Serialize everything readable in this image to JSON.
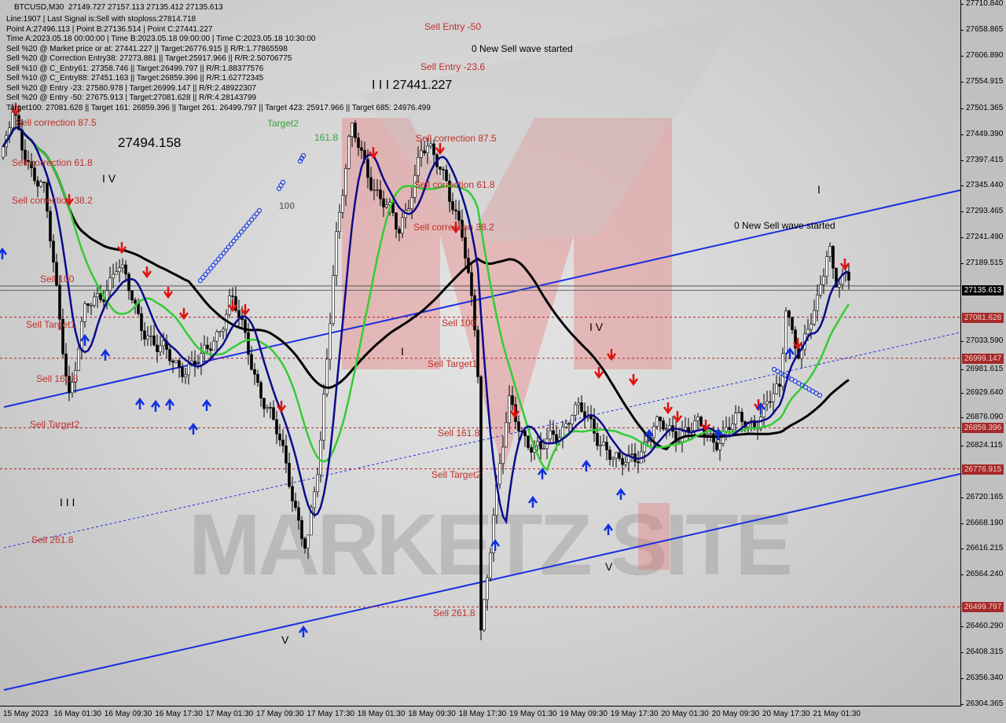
{
  "header": {
    "symbol": "BTCUSD,M30",
    "ohlc": "27149.727 27157.113 27135.412 27135.613"
  },
  "info_lines": [
    "Line:1907 | Last Signal is:Sell with stoploss:27814.718",
    "Point A:27496.113 | Point B:27136.514 | Point C:27441.227",
    "Time A:2023.05.18 00:00:00 | Time B:2023.05.18 09:00:00 | Time C:2023.05.18 10:30:00",
    "Sell %20 @ Market price or at: 27441.227 || Target:26776.915 || R/R:1.77865598",
    "Sell %20 @ Correction Entry38: 27273.881 || Target:25917.966 || R/R:2.50706775",
    "Sell %10 @ C_Entry61: 27358.746 || Target:26499.797 || R/R:1.88377576",
    "Sell %10 @ C_Entry88: 27451.163 || Target:26859.396 || R/R:1.62772345",
    "Sell %20 @ Entry -23: 27580.978 | Target:26999.147 || R/R:2.48922307",
    "Sell %20 @ Entry -50: 27675.913 | Target:27081.628 || R/R:4.28143799",
    "Target100: 27081.628 || Target 161: 26859.396 || Target 261: 26499.797 || Target 423: 25917.966 || Target 685: 24976.499"
  ],
  "annotations": {
    "sell_entry_50": "Sell Entry -50",
    "sell_entry_236": "Sell Entry -23.6",
    "sell_corr_875": "Sell correction 87.5",
    "sell_corr_618": "Sell correction 61.8",
    "sell_corr_382": "Sell correction 38.2",
    "sell_100": "Sell 100",
    "sell_target1": "Sell Target1",
    "sell_1618": "Sell 161.8",
    "sell_target2": "Sell Target2",
    "sell_2618": "Sell 261.8",
    "left_sell_corr_875": "Sell correction 87.5",
    "left_sell_corr_618": "Sell correction 61.8",
    "left_sell_corr_382": "Sell correction 38.2",
    "left_sell_100": "Sell 100",
    "left_sell_target1": "Sell Target1",
    "left_sell_1618": "Sell 161.8",
    "left_sell_target2": "Sell Target2",
    "left_sell_2618": "Sell 261.8",
    "wave_iv_1": "I V",
    "wave_iii_1": "I I I",
    "wave_v_1": "V",
    "wave_iii_2": "I I I 27441.227",
    "wave_i_1": "I",
    "wave_iv_2": "I V",
    "wave_v_2": "V",
    "wave_i_2": "I",
    "new_wave_1": "0 New Sell wave started",
    "new_wave_2": "0 New Sell wave started",
    "fib_100": "100",
    "fib_1618": "161.8",
    "target2": "Target2",
    "price_tl": "27494.158"
  },
  "watermark": "MARKETZ SITE",
  "colors": {
    "sell": "#c0302a",
    "buy": "#1030e0",
    "channel": "#1a2ee0",
    "ma_slow": "#000000",
    "ma_mid": "#33cc33",
    "ma_fast": "#0a0a8a",
    "level_tag": "#a52a2a"
  },
  "chart_data": {
    "type": "candlestick",
    "title": "BTCUSD,M30",
    "ylim": [
      26304.365,
      27710.84
    ],
    "y_ticks": [
      "27710.840",
      "27658.865",
      "27606.890",
      "27554.915",
      "27501.365",
      "27449.390",
      "27397.415",
      "27345.440",
      "27293.465",
      "27241.490",
      "27189.515",
      "27033.590",
      "26981.615",
      "26929.640",
      "26876.090",
      "26824.115",
      "26720.165",
      "26668.190",
      "26616.215",
      "26564.240",
      "26460.290",
      "26408.315",
      "26356.340",
      "26304.365"
    ],
    "x_ticks": [
      "15 May 2023",
      "16 May 01:30",
      "16 May 09:30",
      "16 May 17:30",
      "17 May 01:30",
      "17 May 09:30",
      "17 May 17:30",
      "18 May 01:30",
      "18 May 09:30",
      "18 May 17:30",
      "19 May 01:30",
      "19 May 09:30",
      "19 May 17:30",
      "20 May 01:30",
      "20 May 09:30",
      "20 May 17:30",
      "21 May 01:30"
    ],
    "level_lines": [
      "27081.628",
      "26999.147",
      "26859.396",
      "26776.915",
      "26499.797"
    ],
    "current_price": "27135.613",
    "price_path": [
      [
        "15 May 2023",
        27403
      ],
      [
        "15 May 19:00",
        27482
      ],
      [
        "16 May 00:00",
        27324
      ],
      [
        "16 May 04:00",
        26929
      ],
      [
        "16 May 06:30",
        27087
      ],
      [
        "16 May 11:30",
        27182
      ],
      [
        "16 May 18:00",
        27008
      ],
      [
        "17 May 00:30",
        26977
      ],
      [
        "17 May 05:30",
        27119
      ],
      [
        "17 May 10:30",
        26929
      ],
      [
        "17 May 14:30",
        26771
      ],
      [
        "17 May 17:30",
        26614
      ],
      [
        "17 May 19:30",
        26787
      ],
      [
        "17 May 22:00",
        27245
      ],
      [
        "18 May 00:30",
        27450
      ],
      [
        "18 May 04:00",
        27356
      ],
      [
        "18 May 08:00",
        27245
      ],
      [
        "18 May 11:30",
        27419
      ],
      [
        "18 May 15:30",
        27371
      ],
      [
        "18 May 18:00",
        27245
      ],
      [
        "18 May 20:30",
        27008
      ],
      [
        "18 May 21:00",
        26456
      ],
      [
        "18 May 23:00",
        26693
      ],
      [
        "19 May 01:30",
        26898
      ],
      [
        "19 May 06:30",
        26803
      ],
      [
        "19 May 11:30",
        26898
      ],
      [
        "19 May 16:30",
        26835
      ],
      [
        "19 May 19:00",
        26771
      ],
      [
        "20 May 00:00",
        26851
      ],
      [
        "20 May 05:00",
        26859
      ],
      [
        "20 May 10:00",
        26843
      ],
      [
        "20 May 16:30",
        26882
      ],
      [
        "20 May 20:30",
        26929
      ],
      [
        "20 May 21:00",
        27119
      ],
      [
        "20 May 23:30",
        27008
      ],
      [
        "21 May 02:00",
        27087
      ],
      [
        "21 May 04:00",
        27245
      ],
      [
        "21 May 05:00",
        27166
      ],
      [
        "21 May 07:30",
        27142
      ]
    ]
  }
}
